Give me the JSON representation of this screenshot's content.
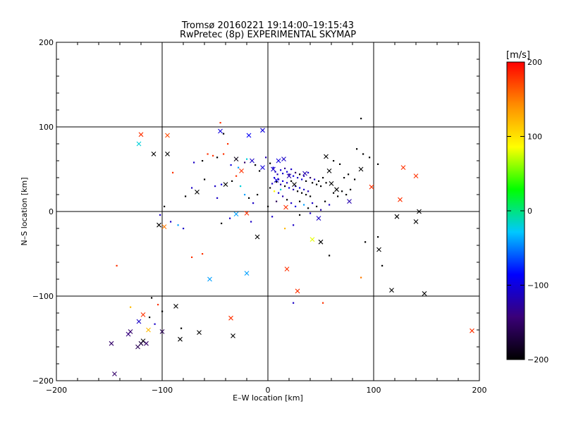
{
  "chart_data": {
    "type": "scatter",
    "title": "Tromsø 20160221 19:14:00–19:15:43",
    "subtitle": "RwPretec (8p) EXPERIMENTAL SKYMAP",
    "xlabel": "E–W location [km]",
    "ylabel": "N–S location [km]",
    "xlim": [
      -200,
      200
    ],
    "ylim": [
      -200,
      200
    ],
    "xticks": [
      "−200",
      "−100",
      "0",
      "100",
      "200"
    ],
    "yticks": [
      "−200",
      "−100",
      "0",
      "100",
      "200"
    ],
    "grid": true,
    "colorbar": {
      "label": "[m/s]",
      "min": -200,
      "max": 200,
      "ticks": [
        "−200",
        "−100",
        "0",
        "100",
        "200"
      ],
      "colors": [
        "#000000",
        "#3a0078",
        "#0000ff",
        "#00c8ff",
        "#00ff00",
        "#ffff00",
        "#ff8c00",
        "#ff0000"
      ]
    },
    "crosses": [
      {
        "x": -120,
        "y": 91,
        "v": 180
      },
      {
        "x": -95,
        "y": 90,
        "v": 170
      },
      {
        "x": -45,
        "y": 95,
        "v": -100
      },
      {
        "x": -18,
        "y": 90,
        "v": -90
      },
      {
        "x": -5,
        "y": 96,
        "v": -100
      },
      {
        "x": -122,
        "y": 80,
        "v": -20
      },
      {
        "x": -108,
        "y": 68,
        "v": -200
      },
      {
        "x": -95,
        "y": 68,
        "v": -200
      },
      {
        "x": -30,
        "y": 62,
        "v": -190
      },
      {
        "x": -25,
        "y": 48,
        "v": 180
      },
      {
        "x": -15,
        "y": 60,
        "v": -110
      },
      {
        "x": 10,
        "y": 60,
        "v": -100
      },
      {
        "x": 15,
        "y": 62,
        "v": -110
      },
      {
        "x": 55,
        "y": 65,
        "v": -200
      },
      {
        "x": 58,
        "y": 48,
        "v": -200
      },
      {
        "x": 88,
        "y": 50,
        "v": -200
      },
      {
        "x": 128,
        "y": 52,
        "v": 180
      },
      {
        "x": 140,
        "y": 42,
        "v": 180
      },
      {
        "x": 98,
        "y": 29,
        "v": 180
      },
      {
        "x": 125,
        "y": 14,
        "v": 180
      },
      {
        "x": 60,
        "y": 33,
        "v": -200
      },
      {
        "x": 65,
        "y": 26,
        "v": -200
      },
      {
        "x": 77,
        "y": 12,
        "v": -120
      },
      {
        "x": -67,
        "y": 23,
        "v": -200
      },
      {
        "x": -40,
        "y": 32,
        "v": -200
      },
      {
        "x": 17,
        "y": 5,
        "v": 180
      },
      {
        "x": -30,
        "y": -3,
        "v": -40
      },
      {
        "x": -20,
        "y": -2,
        "v": 180
      },
      {
        "x": 48,
        "y": -8,
        "v": -110
      },
      {
        "x": -103,
        "y": -16,
        "v": -200
      },
      {
        "x": -98,
        "y": -18,
        "v": 150
      },
      {
        "x": -10,
        "y": -30,
        "v": -200
      },
      {
        "x": 42,
        "y": -33,
        "v": 80
      },
      {
        "x": 50,
        "y": -36,
        "v": -200
      },
      {
        "x": 105,
        "y": -45,
        "v": -200
      },
      {
        "x": 122,
        "y": -6,
        "v": -200
      },
      {
        "x": 140,
        "y": -12,
        "v": -200
      },
      {
        "x": 143,
        "y": 0,
        "v": -200
      },
      {
        "x": -55,
        "y": -80,
        "v": -40
      },
      {
        "x": -20,
        "y": -73,
        "v": -40
      },
      {
        "x": 18,
        "y": -68,
        "v": 180
      },
      {
        "x": 28,
        "y": -94,
        "v": 180
      },
      {
        "x": 117,
        "y": -93,
        "v": -200
      },
      {
        "x": 148,
        "y": -97,
        "v": -200
      },
      {
        "x": -87,
        "y": -112,
        "v": -200
      },
      {
        "x": -118,
        "y": -122,
        "v": 180
      },
      {
        "x": -122,
        "y": -130,
        "v": -110
      },
      {
        "x": -113,
        "y": -140,
        "v": 120
      },
      {
        "x": -100,
        "y": -142,
        "v": -160
      },
      {
        "x": -130,
        "y": -142,
        "v": -150
      },
      {
        "x": -132,
        "y": -145,
        "v": -140
      },
      {
        "x": -118,
        "y": -153,
        "v": -200
      },
      {
        "x": -120,
        "y": -156,
        "v": -170
      },
      {
        "x": -115,
        "y": -156,
        "v": -150
      },
      {
        "x": -123,
        "y": -160,
        "v": -160
      },
      {
        "x": -148,
        "y": -156,
        "v": -150
      },
      {
        "x": -65,
        "y": -143,
        "v": -200
      },
      {
        "x": -83,
        "y": -151,
        "v": -200
      },
      {
        "x": -33,
        "y": -147,
        "v": -200
      },
      {
        "x": -35,
        "y": -126,
        "v": 180
      },
      {
        "x": -145,
        "y": -192,
        "v": -150
      },
      {
        "x": 193,
        "y": -141,
        "v": 180
      },
      {
        "x": 5,
        "y": 50,
        "v": -110
      },
      {
        "x": 20,
        "y": 42,
        "v": -120
      },
      {
        "x": 35,
        "y": 45,
        "v": -120
      },
      {
        "x": 8,
        "y": 37,
        "v": -100
      },
      {
        "x": 25,
        "y": 32,
        "v": -200
      },
      {
        "x": -5,
        "y": 52,
        "v": -100
      }
    ],
    "dots": [
      {
        "x": -45,
        "y": 105,
        "v": 180
      },
      {
        "x": -42,
        "y": 92,
        "v": -200
      },
      {
        "x": -38,
        "y": 80,
        "v": 180
      },
      {
        "x": -57,
        "y": 68,
        "v": 180
      },
      {
        "x": -52,
        "y": 66,
        "v": 180
      },
      {
        "x": -48,
        "y": 64,
        "v": -200
      },
      {
        "x": -70,
        "y": 58,
        "v": -110
      },
      {
        "x": -62,
        "y": 60,
        "v": -200
      },
      {
        "x": -42,
        "y": 68,
        "v": 180
      },
      {
        "x": -35,
        "y": 55,
        "v": -100
      },
      {
        "x": -28,
        "y": 52,
        "v": -40
      },
      {
        "x": -22,
        "y": 58,
        "v": -150
      },
      {
        "x": -20,
        "y": 62,
        "v": -20
      },
      {
        "x": -12,
        "y": 55,
        "v": -200
      },
      {
        "x": -8,
        "y": 48,
        "v": -200
      },
      {
        "x": -2,
        "y": 64,
        "v": -120
      },
      {
        "x": 2,
        "y": 57,
        "v": -200
      },
      {
        "x": 5,
        "y": 52,
        "v": -100
      },
      {
        "x": 7,
        "y": 47,
        "v": -110
      },
      {
        "x": 9,
        "y": 44,
        "v": -120
      },
      {
        "x": 12,
        "y": 49,
        "v": -100
      },
      {
        "x": 14,
        "y": 45,
        "v": -110
      },
      {
        "x": 16,
        "y": 51,
        "v": -130
      },
      {
        "x": 18,
        "y": 47,
        "v": -100
      },
      {
        "x": 20,
        "y": 44,
        "v": -120
      },
      {
        "x": 22,
        "y": 50,
        "v": -110
      },
      {
        "x": 24,
        "y": 42,
        "v": -100
      },
      {
        "x": 26,
        "y": 46,
        "v": -150
      },
      {
        "x": 28,
        "y": 40,
        "v": -110
      },
      {
        "x": 30,
        "y": 44,
        "v": -200
      },
      {
        "x": 32,
        "y": 38,
        "v": -100
      },
      {
        "x": 34,
        "y": 42,
        "v": -120
      },
      {
        "x": 36,
        "y": 36,
        "v": -200
      },
      {
        "x": 38,
        "y": 46,
        "v": -110
      },
      {
        "x": 40,
        "y": 40,
        "v": -160
      },
      {
        "x": 42,
        "y": 34,
        "v": -200
      },
      {
        "x": 44,
        "y": 38,
        "v": -110
      },
      {
        "x": 46,
        "y": 32,
        "v": -200
      },
      {
        "x": 48,
        "y": 36,
        "v": -200
      },
      {
        "x": 50,
        "y": 30,
        "v": -200
      },
      {
        "x": 52,
        "y": 40,
        "v": -200
      },
      {
        "x": 55,
        "y": 34,
        "v": -200
      },
      {
        "x": 6,
        "y": 40,
        "v": -100
      },
      {
        "x": 8,
        "y": 35,
        "v": -200
      },
      {
        "x": 10,
        "y": 38,
        "v": -110
      },
      {
        "x": 12,
        "y": 32,
        "v": -120
      },
      {
        "x": 14,
        "y": 36,
        "v": -100
      },
      {
        "x": 16,
        "y": 30,
        "v": -200
      },
      {
        "x": 18,
        "y": 34,
        "v": -110
      },
      {
        "x": 20,
        "y": 28,
        "v": -100
      },
      {
        "x": 22,
        "y": 36,
        "v": -200
      },
      {
        "x": 24,
        "y": 26,
        "v": -120
      },
      {
        "x": 26,
        "y": 30,
        "v": -110
      },
      {
        "x": 28,
        "y": 24,
        "v": -200
      },
      {
        "x": 30,
        "y": 28,
        "v": -100
      },
      {
        "x": 32,
        "y": 22,
        "v": -200
      },
      {
        "x": 34,
        "y": 26,
        "v": -110
      },
      {
        "x": 36,
        "y": 20,
        "v": -200
      },
      {
        "x": 38,
        "y": 24,
        "v": -120
      },
      {
        "x": 40,
        "y": 18,
        "v": -200
      },
      {
        "x": 4,
        "y": 33,
        "v": -110
      },
      {
        "x": 2,
        "y": 28,
        "v": -200
      },
      {
        "x": 6,
        "y": 24,
        "v": 90
      },
      {
        "x": 10,
        "y": 22,
        "v": -100
      },
      {
        "x": 14,
        "y": 18,
        "v": -120
      },
      {
        "x": 18,
        "y": 14,
        "v": -200
      },
      {
        "x": 22,
        "y": 10,
        "v": -110
      },
      {
        "x": 26,
        "y": 6,
        "v": -100
      },
      {
        "x": 30,
        "y": 12,
        "v": -200
      },
      {
        "x": 34,
        "y": 8,
        "v": -40
      },
      {
        "x": 38,
        "y": 4,
        "v": -200
      },
      {
        "x": 42,
        "y": 10,
        "v": -110
      },
      {
        "x": 46,
        "y": 6,
        "v": -200
      },
      {
        "x": 50,
        "y": 2,
        "v": -120
      },
      {
        "x": 54,
        "y": 12,
        "v": -200
      },
      {
        "x": 58,
        "y": 8,
        "v": -110
      },
      {
        "x": 62,
        "y": 22,
        "v": -200
      },
      {
        "x": 66,
        "y": 18,
        "v": -200
      },
      {
        "x": 70,
        "y": 24,
        "v": -200
      },
      {
        "x": 74,
        "y": 20,
        "v": -200
      },
      {
        "x": 78,
        "y": 26,
        "v": -200
      },
      {
        "x": 72,
        "y": 40,
        "v": -200
      },
      {
        "x": 76,
        "y": 44,
        "v": -200
      },
      {
        "x": 82,
        "y": 38,
        "v": -200
      },
      {
        "x": 84,
        "y": 74,
        "v": -200
      },
      {
        "x": 90,
        "y": 68,
        "v": -200
      },
      {
        "x": 96,
        "y": 64,
        "v": -200
      },
      {
        "x": 104,
        "y": 56,
        "v": -200
      },
      {
        "x": 88,
        "y": 110,
        "v": -200
      },
      {
        "x": 68,
        "y": 56,
        "v": -200
      },
      {
        "x": 62,
        "y": 60,
        "v": -200
      },
      {
        "x": -10,
        "y": 20,
        "v": -200
      },
      {
        "x": -14,
        "y": 10,
        "v": -110
      },
      {
        "x": -18,
        "y": 16,
        "v": -200
      },
      {
        "x": -22,
        "y": 20,
        "v": -40
      },
      {
        "x": -26,
        "y": 30,
        "v": -20
      },
      {
        "x": -30,
        "y": 42,
        "v": 180
      },
      {
        "x": -34,
        "y": 36,
        "v": -200
      },
      {
        "x": -50,
        "y": 30,
        "v": -110
      },
      {
        "x": -60,
        "y": 38,
        "v": -200
      },
      {
        "x": -72,
        "y": 28,
        "v": -110
      },
      {
        "x": -78,
        "y": 18,
        "v": -200
      },
      {
        "x": -90,
        "y": 46,
        "v": 180
      },
      {
        "x": -98,
        "y": 6,
        "v": -200
      },
      {
        "x": -102,
        "y": -4,
        "v": -110
      },
      {
        "x": -92,
        "y": -12,
        "v": -110
      },
      {
        "x": -80,
        "y": -20,
        "v": -110
      },
      {
        "x": -85,
        "y": -16,
        "v": -40
      },
      {
        "x": -44,
        "y": -14,
        "v": -200
      },
      {
        "x": -36,
        "y": -8,
        "v": -110
      },
      {
        "x": -16,
        "y": -12,
        "v": -110
      },
      {
        "x": 4,
        "y": -6,
        "v": -110
      },
      {
        "x": 16,
        "y": -20,
        "v": 120
      },
      {
        "x": 24,
        "y": -16,
        "v": -110
      },
      {
        "x": 30,
        "y": -4,
        "v": -200
      },
      {
        "x": 40,
        "y": -2,
        "v": -110
      },
      {
        "x": 58,
        "y": -52,
        "v": -200
      },
      {
        "x": 92,
        "y": -36,
        "v": -200
      },
      {
        "x": 104,
        "y": -30,
        "v": -200
      },
      {
        "x": 108,
        "y": -64,
        "v": -200
      },
      {
        "x": 88,
        "y": -78,
        "v": 150
      },
      {
        "x": 52,
        "y": -108,
        "v": 180
      },
      {
        "x": 24,
        "y": -108,
        "v": -110
      },
      {
        "x": -72,
        "y": -54,
        "v": 180
      },
      {
        "x": -62,
        "y": -50,
        "v": 180
      },
      {
        "x": -143,
        "y": -64,
        "v": 180
      },
      {
        "x": -110,
        "y": -102,
        "v": -200
      },
      {
        "x": -104,
        "y": -110,
        "v": 180
      },
      {
        "x": -100,
        "y": -118,
        "v": -200
      },
      {
        "x": -130,
        "y": -113,
        "v": 120
      },
      {
        "x": -107,
        "y": -133,
        "v": -110
      },
      {
        "x": -82,
        "y": -138,
        "v": -200
      },
      {
        "x": -112,
        "y": -125,
        "v": -200
      },
      {
        "x": -44,
        "y": 32,
        "v": -100
      },
      {
        "x": -48,
        "y": 16,
        "v": -110
      },
      {
        "x": 0,
        "y": 6,
        "v": -200
      },
      {
        "x": 8,
        "y": 12,
        "v": -160
      },
      {
        "x": 12,
        "y": 26,
        "v": -20
      }
    ]
  }
}
